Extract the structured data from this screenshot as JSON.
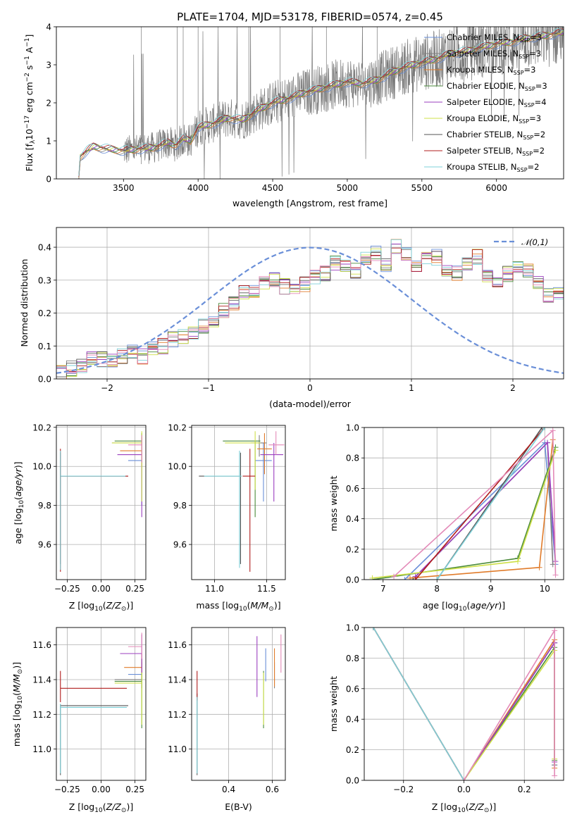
{
  "title": "PLATE=1704, MJD=53178, FIBERID=0574, z=0.45",
  "colors": [
    "#6a8fd8",
    "#7f7f7f",
    "#e07b2a",
    "#4a8a3a",
    "#9b3fbf",
    "#cfe04a",
    "#555555",
    "#b01c1c",
    "#7fd0d8",
    "#e38ab8"
  ],
  "legend": [
    {
      "prefix": "Chabrier MILES, N",
      "sub": "SSP",
      "suffix": "=3",
      "color": "#6a8fd8"
    },
    {
      "prefix": "Salpeter MILES, N",
      "sub": "SSP",
      "suffix": "=3",
      "color": "#7f7f7f"
    },
    {
      "prefix": "Kroupa MILES, N",
      "sub": "SSP",
      "suffix": "=3",
      "color": "#e07b2a"
    },
    {
      "prefix": "Chabrier ELODIE, N",
      "sub": "SSP",
      "suffix": "=3",
      "color": "#4a8a3a"
    },
    {
      "prefix": "Salpeter ELODIE, N",
      "sub": "SSP",
      "suffix": "=4",
      "color": "#9b3fbf"
    },
    {
      "prefix": "Kroupa ELODIE, N",
      "sub": "SSP",
      "suffix": "=3",
      "color": "#cfe04a"
    },
    {
      "prefix": "Chabrier STELIB, N",
      "sub": "SSP",
      "suffix": "=2",
      "color": "#555555"
    },
    {
      "prefix": "Salpeter STELIB, N",
      "sub": "SSP",
      "suffix": "=2",
      "color": "#b01c1c"
    },
    {
      "prefix": "Kroupa STELIB, N",
      "sub": "SSP",
      "suffix": "=2",
      "color": "#7fd0d8"
    }
  ],
  "chart_data": [
    {
      "id": "spectrum",
      "type": "line",
      "xlabel": "wavelength [Angstrom, rest frame]",
      "ylabel_parts": [
        "Flux [f",
        "λ",
        "10",
        "−17",
        " erg cm",
        "−2",
        " s",
        "−1",
        " A",
        "−1",
        "]"
      ],
      "xlim": [
        3050,
        6450
      ],
      "ylim": [
        0,
        4
      ],
      "xticks": [
        3500,
        4000,
        4500,
        5000,
        5500,
        6000
      ],
      "yticks": [
        0,
        1,
        2,
        3,
        4
      ],
      "model_start": 3200,
      "noisy_start": 3500,
      "model_knots": [
        [
          3200,
          0
        ],
        [
          3210,
          0.58
        ],
        [
          3250,
          0.72
        ],
        [
          3300,
          0.85
        ],
        [
          3400,
          0.78
        ],
        [
          3500,
          0.74
        ],
        [
          3600,
          0.78
        ],
        [
          3700,
          0.82
        ],
        [
          3800,
          0.95
        ],
        [
          3850,
          0.88
        ],
        [
          3900,
          1.05
        ],
        [
          3950,
          1.0
        ],
        [
          4000,
          1.35
        ],
        [
          4100,
          1.45
        ],
        [
          4200,
          1.6
        ],
        [
          4300,
          1.55
        ],
        [
          4400,
          1.8
        ],
        [
          4500,
          2.0
        ],
        [
          4600,
          2.1
        ],
        [
          4700,
          2.25
        ],
        [
          4800,
          2.35
        ],
        [
          4900,
          2.45
        ],
        [
          5000,
          2.55
        ],
        [
          5100,
          2.5
        ],
        [
          5200,
          2.6
        ],
        [
          5300,
          2.8
        ],
        [
          5400,
          2.95
        ],
        [
          5500,
          3.05
        ],
        [
          5600,
          3.15
        ],
        [
          5700,
          3.3
        ],
        [
          5800,
          3.35
        ],
        [
          5900,
          3.45
        ],
        [
          6000,
          3.55
        ],
        [
          6100,
          3.6
        ],
        [
          6200,
          3.7
        ],
        [
          6300,
          3.75
        ],
        [
          6450,
          3.85
        ]
      ],
      "noise_amplitude": 0.6
    },
    {
      "id": "residuals",
      "type": "step-histogram",
      "xlabel": "(data-model)/error",
      "ylabel": "Normed distribution",
      "xlim": [
        -2.5,
        2.5
      ],
      "ylim": [
        0,
        0.46
      ],
      "xticks": [
        -2,
        -1,
        0,
        1,
        2
      ],
      "yticks": [
        0.0,
        0.1,
        0.2,
        0.3,
        0.4
      ],
      "bin_start": -2.5,
      "bin_width": 0.1,
      "base_values": [
        0.02,
        0.03,
        0.04,
        0.06,
        0.06,
        0.06,
        0.07,
        0.08,
        0.07,
        0.09,
        0.1,
        0.12,
        0.13,
        0.14,
        0.16,
        0.18,
        0.21,
        0.23,
        0.26,
        0.27,
        0.29,
        0.3,
        0.28,
        0.28,
        0.29,
        0.31,
        0.32,
        0.35,
        0.34,
        0.33,
        0.36,
        0.38,
        0.35,
        0.4,
        0.38,
        0.35,
        0.36,
        0.37,
        0.33,
        0.32,
        0.35,
        0.37,
        0.31,
        0.3,
        0.32,
        0.34,
        0.33,
        0.29,
        0.25,
        0.26,
        0.24,
        0.21,
        0.2,
        0.17,
        0.14,
        0.13,
        0.11,
        0.12,
        0.1,
        0.08,
        0.09,
        0.07,
        0.06,
        0.05,
        0.05,
        0.05,
        0.04,
        0.04,
        0.03,
        0.03
      ],
      "legend_label": "𝒩(0,1)",
      "gaussian_color": "#6a8fd8"
    },
    {
      "id": "age_vs_Z",
      "type": "errorbar",
      "xlabel": "Z [log10(Z/Z⊙)]",
      "ylabel": "age  [log10(age/yr)]",
      "xlim": [
        -0.33,
        0.33
      ],
      "ylim": [
        9.42,
        10.21
      ],
      "xticks": [
        -0.25,
        0.0,
        0.25
      ],
      "yticks": [
        9.6,
        9.8,
        10.0,
        10.2
      ],
      "points": [
        {
          "x": 0.3,
          "y": 10.03,
          "xlo": 0.2,
          "xhi": 0.3,
          "ylo": 9.8,
          "yhi": 10.12,
          "c": 0
        },
        {
          "x": 0.3,
          "y": 10.12,
          "xlo": 0.08,
          "xhi": 0.3,
          "ylo": 10.05,
          "yhi": 10.15,
          "c": 1
        },
        {
          "x": 0.3,
          "y": 10.08,
          "xlo": 0.14,
          "xhi": 0.3,
          "ylo": 10.0,
          "yhi": 10.15,
          "c": 2
        },
        {
          "x": 0.3,
          "y": 10.13,
          "xlo": 0.1,
          "xhi": 0.3,
          "ylo": 10.02,
          "yhi": 10.17,
          "c": 3
        },
        {
          "x": 0.3,
          "y": 10.06,
          "xlo": 0.12,
          "xhi": 0.3,
          "ylo": 9.74,
          "yhi": 10.12,
          "c": 4
        },
        {
          "x": 0.3,
          "y": 10.12,
          "xlo": 0.08,
          "xhi": 0.3,
          "ylo": 9.82,
          "yhi": 10.18,
          "c": 5
        },
        {
          "x": -0.3,
          "y": 9.95,
          "xlo": -0.3,
          "xhi": 0.2,
          "ylo": 9.5,
          "yhi": 10.07,
          "c": 6
        },
        {
          "x": -0.3,
          "y": 9.95,
          "xlo": -0.3,
          "xhi": 0.2,
          "ylo": 9.46,
          "yhi": 10.09,
          "c": 7
        },
        {
          "x": -0.3,
          "y": 9.95,
          "xlo": -0.3,
          "xhi": 0.18,
          "ylo": 9.47,
          "yhi": 10.08,
          "c": 8
        },
        {
          "x": 0.3,
          "y": 10.11,
          "xlo": 0.2,
          "xhi": 0.3,
          "ylo": 10.02,
          "yhi": 10.16,
          "c": 9
        }
      ]
    },
    {
      "id": "age_vs_mass",
      "type": "errorbar",
      "xlabel": "mass [log10(M/M⊙)]",
      "ylabel": "",
      "xlim": [
        10.78,
        11.68
      ],
      "ylim": [
        9.42,
        10.21
      ],
      "xticks": [
        11.0,
        11.5
      ],
      "yticks": [
        9.6,
        9.8,
        10.0,
        10.2
      ],
      "points": [
        {
          "x": 11.47,
          "y": 10.03,
          "xlo": 11.39,
          "xhi": 11.55,
          "ylo": 9.82,
          "yhi": 10.12,
          "c": 0
        },
        {
          "x": 11.43,
          "y": 10.12,
          "xlo": 11.35,
          "xhi": 11.5,
          "ylo": 10.05,
          "yhi": 10.16,
          "c": 1
        },
        {
          "x": 11.48,
          "y": 10.09,
          "xlo": 11.41,
          "xhi": 11.55,
          "ylo": 9.96,
          "yhi": 10.17,
          "c": 2
        },
        {
          "x": 11.39,
          "y": 10.13,
          "xlo": 11.08,
          "xhi": 11.44,
          "ylo": 9.74,
          "yhi": 10.13,
          "c": 3
        },
        {
          "x": 11.57,
          "y": 10.06,
          "xlo": 11.44,
          "xhi": 11.66,
          "ylo": 9.82,
          "yhi": 10.12,
          "c": 4
        },
        {
          "x": 11.39,
          "y": 10.12,
          "xlo": 11.1,
          "xhi": 11.44,
          "ylo": 9.88,
          "yhi": 10.18,
          "c": 5
        },
        {
          "x": 11.25,
          "y": 9.95,
          "xlo": 10.85,
          "xhi": 11.26,
          "ylo": 9.5,
          "yhi": 10.07,
          "c": 6
        },
        {
          "x": 11.34,
          "y": 9.95,
          "xlo": 11.27,
          "xhi": 11.39,
          "ylo": 9.46,
          "yhi": 10.09,
          "c": 7
        },
        {
          "x": 11.24,
          "y": 9.95,
          "xlo": 10.9,
          "xhi": 11.26,
          "ylo": 9.48,
          "yhi": 10.08,
          "c": 8
        },
        {
          "x": 11.59,
          "y": 10.11,
          "xlo": 11.52,
          "xhi": 11.67,
          "ylo": 10.06,
          "yhi": 10.18,
          "c": 9
        }
      ]
    },
    {
      "id": "mass_weight_vs_age",
      "type": "line",
      "xlabel": "age  [log10(age/yr)]",
      "ylabel": "mass weight",
      "xlim": [
        6.65,
        10.35
      ],
      "ylim": [
        0,
        1
      ],
      "xticks": [
        7,
        8,
        9,
        10
      ],
      "yticks": [
        0.0,
        0.2,
        0.4,
        0.6,
        0.8,
        1.0
      ],
      "series": [
        {
          "c": 0,
          "pts": [
            [
              7.4,
              0.0
            ],
            [
              10.0,
              0.9
            ],
            [
              10.2,
              0.1
            ]
          ]
        },
        {
          "c": 1,
          "pts": [
            [
              7.55,
              0.0
            ],
            [
              10.05,
              0.9
            ],
            [
              10.15,
              0.1
            ]
          ]
        },
        {
          "c": 2,
          "pts": [
            [
              7.5,
              0.01
            ],
            [
              9.9,
              0.08
            ],
            [
              10.15,
              0.92
            ]
          ]
        },
        {
          "c": 3,
          "pts": [
            [
              6.8,
              0.0
            ],
            [
              9.5,
              0.14
            ],
            [
              10.2,
              0.87
            ]
          ]
        },
        {
          "c": 4,
          "pts": [
            [
              7.6,
              0.02
            ],
            [
              10.05,
              0.9
            ],
            [
              10.2,
              0.12
            ]
          ]
        },
        {
          "c": 5,
          "pts": [
            [
              6.8,
              0.01
            ],
            [
              9.5,
              0.12
            ],
            [
              10.2,
              0.85
            ]
          ]
        },
        {
          "c": 6,
          "pts": [
            [
              8.0,
              0.0
            ],
            [
              9.95,
              1.0
            ]
          ]
        },
        {
          "c": 7,
          "pts": [
            [
              7.6,
              0.0
            ],
            [
              10.0,
              1.0
            ]
          ]
        },
        {
          "c": 8,
          "pts": [
            [
              8.0,
              0.0
            ],
            [
              10.0,
              1.0
            ]
          ]
        },
        {
          "c": 9,
          "pts": [
            [
              7.2,
              0.02
            ],
            [
              10.15,
              0.98
            ],
            [
              10.2,
              0.03
            ]
          ]
        }
      ]
    },
    {
      "id": "mass_vs_Z",
      "type": "errorbar",
      "xlabel": "Z [log10(Z/Z⊙)]",
      "ylabel": "mass [log10(M/M⊙)]",
      "xlim": [
        -0.33,
        0.33
      ],
      "ylim": [
        10.82,
        11.7
      ],
      "xticks": [
        -0.25,
        0.0,
        0.25
      ],
      "yticks": [
        11.0,
        11.2,
        11.4,
        11.6
      ],
      "points": [
        {
          "x": 0.3,
          "y": 11.43,
          "xlo": 0.2,
          "xhi": 0.3,
          "ylo": 11.39,
          "yhi": 11.55,
          "c": 0
        },
        {
          "x": 0.3,
          "y": 11.4,
          "xlo": 0.1,
          "xhi": 0.3,
          "ylo": 11.35,
          "yhi": 11.5,
          "c": 1
        },
        {
          "x": 0.3,
          "y": 11.47,
          "xlo": 0.17,
          "xhi": 0.3,
          "ylo": 11.41,
          "yhi": 11.55,
          "c": 2
        },
        {
          "x": 0.3,
          "y": 11.39,
          "xlo": 0.1,
          "xhi": 0.3,
          "ylo": 11.12,
          "yhi": 11.44,
          "c": 3
        },
        {
          "x": 0.3,
          "y": 11.55,
          "xlo": 0.14,
          "xhi": 0.3,
          "ylo": 11.44,
          "yhi": 11.66,
          "c": 4
        },
        {
          "x": 0.3,
          "y": 11.38,
          "xlo": 0.1,
          "xhi": 0.3,
          "ylo": 11.14,
          "yhi": 11.44,
          "c": 5
        },
        {
          "x": -0.3,
          "y": 11.25,
          "xlo": -0.3,
          "xhi": 0.2,
          "ylo": 10.85,
          "yhi": 11.26,
          "c": 6
        },
        {
          "x": -0.3,
          "y": 11.35,
          "xlo": -0.3,
          "xhi": 0.19,
          "ylo": 11.27,
          "yhi": 11.45,
          "c": 7
        },
        {
          "x": -0.3,
          "y": 11.24,
          "xlo": -0.3,
          "xhi": 0.19,
          "ylo": 10.86,
          "yhi": 11.26,
          "c": 8
        },
        {
          "x": 0.3,
          "y": 11.59,
          "xlo": 0.2,
          "xhi": 0.3,
          "ylo": 11.52,
          "yhi": 11.67,
          "c": 9
        }
      ]
    },
    {
      "id": "mass_vs_ebv",
      "type": "errorbar",
      "xlabel": "E(B-V)",
      "ylabel": "",
      "xlim": [
        0.23,
        0.66
      ],
      "ylim": [
        10.82,
        11.7
      ],
      "xticks": [
        0.4,
        0.6
      ],
      "yticks": [
        11.0,
        11.2,
        11.4,
        11.6
      ],
      "points": [
        {
          "x": 0.57,
          "y": 11.47,
          "ylo": 11.39,
          "yhi": 11.58,
          "c": 0
        },
        {
          "x": 0.61,
          "y": 11.43,
          "ylo": 11.35,
          "yhi": 11.5,
          "c": 1
        },
        {
          "x": 0.61,
          "y": 11.47,
          "ylo": 11.36,
          "yhi": 11.58,
          "c": 2
        },
        {
          "x": 0.56,
          "y": 11.4,
          "ylo": 11.12,
          "yhi": 11.45,
          "c": 3
        },
        {
          "x": 0.53,
          "y": 11.55,
          "ylo": 11.3,
          "yhi": 11.65,
          "c": 4
        },
        {
          "x": 0.56,
          "y": 11.38,
          "ylo": 11.14,
          "yhi": 11.44,
          "c": 5
        },
        {
          "x": 0.255,
          "y": 11.25,
          "ylo": 10.85,
          "yhi": 11.32,
          "c": 6
        },
        {
          "x": 0.255,
          "y": 11.35,
          "ylo": 11.28,
          "yhi": 11.45,
          "c": 7
        },
        {
          "x": 0.255,
          "y": 11.24,
          "ylo": 10.86,
          "yhi": 11.3,
          "c": 8
        },
        {
          "x": 0.64,
          "y": 11.59,
          "ylo": 11.44,
          "yhi": 11.66,
          "c": 9
        }
      ]
    },
    {
      "id": "mass_weight_vs_Z",
      "type": "line",
      "xlabel": "Z [log10(Z/Z⊙)]",
      "ylabel": "mass weight",
      "xlim": [
        -0.33,
        0.33
      ],
      "ylim": [
        0,
        1
      ],
      "xticks": [
        -0.2,
        0.0,
        0.2
      ],
      "yticks": [
        0.0,
        0.2,
        0.4,
        0.6,
        0.8,
        1.0
      ],
      "series": [
        {
          "c": 0,
          "pts": [
            [
              0.0,
              0.0
            ],
            [
              0.3,
              0.9
            ],
            [
              0.3,
              0.1
            ]
          ]
        },
        {
          "c": 1,
          "pts": [
            [
              0.0,
              0.0
            ],
            [
              0.3,
              0.9
            ],
            [
              0.3,
              0.1
            ]
          ]
        },
        {
          "c": 2,
          "pts": [
            [
              0.0,
              0.0
            ],
            [
              0.3,
              0.92
            ],
            [
              0.3,
              0.08
            ]
          ]
        },
        {
          "c": 3,
          "pts": [
            [
              0.0,
              0.0
            ],
            [
              0.3,
              0.87
            ],
            [
              0.3,
              0.13
            ]
          ]
        },
        {
          "c": 4,
          "pts": [
            [
              0.0,
              0.0
            ],
            [
              0.3,
              0.9
            ],
            [
              0.3,
              0.12
            ]
          ]
        },
        {
          "c": 5,
          "pts": [
            [
              0.0,
              0.0
            ],
            [
              0.3,
              0.85
            ],
            [
              0.3,
              0.14
            ]
          ]
        },
        {
          "c": 6,
          "pts": [
            [
              -0.3,
              1.0
            ],
            [
              0.0,
              0.0
            ]
          ]
        },
        {
          "c": 7,
          "pts": [
            [
              -0.3,
              1.0
            ],
            [
              0.0,
              0.0
            ]
          ]
        },
        {
          "c": 8,
          "pts": [
            [
              -0.3,
              1.0
            ],
            [
              0.0,
              0.0
            ]
          ]
        },
        {
          "c": 9,
          "pts": [
            [
              0.0,
              0.0
            ],
            [
              0.3,
              0.98
            ],
            [
              0.3,
              0.03
            ]
          ]
        }
      ]
    }
  ]
}
